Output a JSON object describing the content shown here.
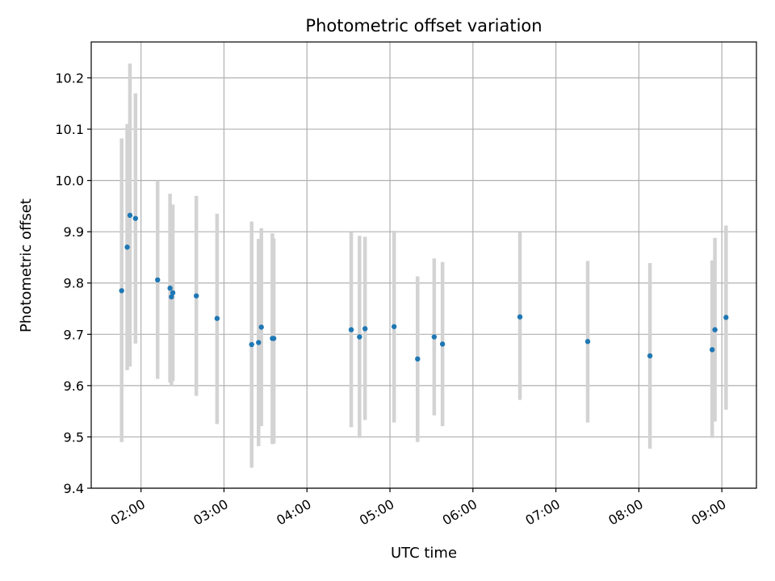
{
  "chart_data": {
    "type": "scatter",
    "title": "Photometric offset variation",
    "xlabel": "UTC time",
    "ylabel": "Photometric offset",
    "x_unit": "HH:MM",
    "xlim": [
      "01:24",
      "09:25"
    ],
    "ylim": [
      9.4,
      10.27
    ],
    "grid": true,
    "legend": "none",
    "colors": {
      "marker": "#1f77b4",
      "errorbar": "#d3d3d3",
      "grid": "#b0b0b0"
    },
    "xticks": [
      "02:00",
      "03:00",
      "04:00",
      "05:00",
      "06:00",
      "07:00",
      "08:00",
      "09:00"
    ],
    "yticks": [
      9.4,
      9.5,
      9.6,
      9.7,
      9.8,
      9.9,
      10.0,
      10.1,
      10.2
    ],
    "ytick_labels": [
      "9.4",
      "9.5",
      "9.6",
      "9.7",
      "9.8",
      "9.9",
      "10.0",
      "10.1",
      "10.2"
    ],
    "points": [
      {
        "t": "01:46",
        "y": 9.785,
        "lo": 9.49,
        "hi": 10.082
      },
      {
        "t": "01:50",
        "y": 9.87,
        "lo": 9.63,
        "hi": 10.11
      },
      {
        "t": "01:52",
        "y": 9.932,
        "lo": 9.637,
        "hi": 10.228
      },
      {
        "t": "01:56",
        "y": 9.926,
        "lo": 9.682,
        "hi": 10.17
      },
      {
        "t": "02:12",
        "y": 9.806,
        "lo": 9.613,
        "hi": 10.0
      },
      {
        "t": "02:21",
        "y": 9.79,
        "lo": 9.606,
        "hi": 9.974
      },
      {
        "t": "02:22",
        "y": 9.773,
        "lo": 9.6,
        "hi": 9.946
      },
      {
        "t": "02:23",
        "y": 9.781,
        "lo": 9.609,
        "hi": 9.953
      },
      {
        "t": "02:40",
        "y": 9.775,
        "lo": 9.58,
        "hi": 9.97
      },
      {
        "t": "02:55",
        "y": 9.731,
        "lo": 9.525,
        "hi": 9.935
      },
      {
        "t": "03:20",
        "y": 9.68,
        "lo": 9.44,
        "hi": 9.92
      },
      {
        "t": "03:25",
        "y": 9.684,
        "lo": 9.482,
        "hi": 9.886
      },
      {
        "t": "03:27",
        "y": 9.714,
        "lo": 9.521,
        "hi": 9.907
      },
      {
        "t": "03:35",
        "y": 9.692,
        "lo": 9.486,
        "hi": 9.897
      },
      {
        "t": "03:36",
        "y": 9.692,
        "lo": 9.487,
        "hi": 9.887
      },
      {
        "t": "04:32",
        "y": 9.709,
        "lo": 9.519,
        "hi": 9.899
      },
      {
        "t": "04:38",
        "y": 9.695,
        "lo": 9.498,
        "hi": 9.892
      },
      {
        "t": "04:42",
        "y": 9.711,
        "lo": 9.533,
        "hi": 9.89
      },
      {
        "t": "05:03",
        "y": 9.715,
        "lo": 9.528,
        "hi": 9.902
      },
      {
        "t": "05:20",
        "y": 9.652,
        "lo": 9.49,
        "hi": 9.813
      },
      {
        "t": "05:32",
        "y": 9.695,
        "lo": 9.542,
        "hi": 9.848
      },
      {
        "t": "05:38",
        "y": 9.681,
        "lo": 9.521,
        "hi": 9.841
      },
      {
        "t": "06:34",
        "y": 9.734,
        "lo": 9.572,
        "hi": 9.899
      },
      {
        "t": "07:23",
        "y": 9.686,
        "lo": 9.528,
        "hi": 9.843
      },
      {
        "t": "08:08",
        "y": 9.658,
        "lo": 9.477,
        "hi": 9.839
      },
      {
        "t": "08:53",
        "y": 9.67,
        "lo": 9.498,
        "hi": 9.844
      },
      {
        "t": "08:55",
        "y": 9.709,
        "lo": 9.53,
        "hi": 9.888
      },
      {
        "t": "09:03",
        "y": 9.733,
        "lo": 9.553,
        "hi": 9.912
      }
    ]
  }
}
